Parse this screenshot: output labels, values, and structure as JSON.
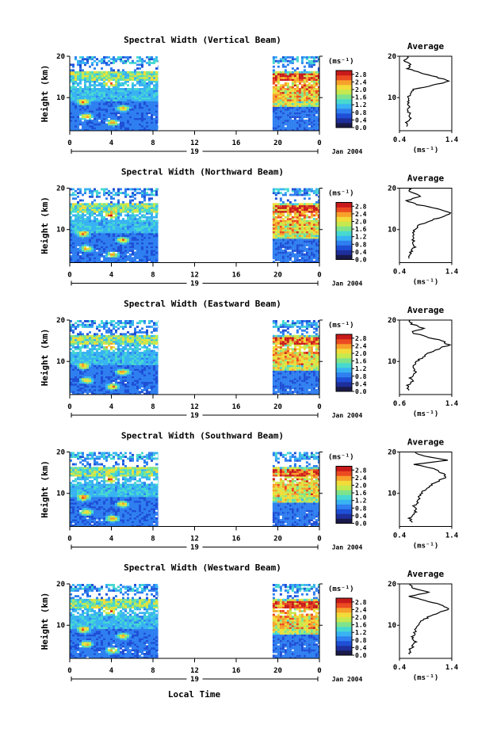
{
  "figure": {
    "xlabel": "Local Time",
    "date_label": "Jan 2004",
    "cbar_unit": "(ms⁻¹)",
    "avg_title": "Average",
    "avg_xlabel": "(ms⁻¹)",
    "ylabel": "Height (km)"
  },
  "chart_data": [
    {
      "type": "heatmap",
      "title": "Spectral Width (Vertical Beam)",
      "ylabel": "Height (km)",
      "xlabel": "Local Time",
      "x_ticks": [
        "0",
        "4",
        "8",
        "12",
        "16",
        "20",
        "0"
      ],
      "day_label": "19",
      "y_ticks": [
        "10",
        "20"
      ],
      "ylim": [
        2,
        20
      ],
      "xlim": [
        0,
        24
      ],
      "data_coverage": [
        [
          0,
          8.5
        ],
        [
          19.5,
          24
        ]
      ],
      "colorbar": {
        "ticks": [
          "0.0",
          "0.4",
          "0.8",
          "1.2",
          "1.6",
          "2.0",
          "2.4",
          "2.8"
        ],
        "range": [
          0,
          3.0
        ]
      },
      "average_profile": {
        "xlim": [
          0.4,
          1.4
        ],
        "x_ticks": [
          "0.4",
          "1.4"
        ],
        "y_ticks": [
          "10",
          "20"
        ],
        "height": [
          3,
          4,
          5,
          6,
          7,
          8,
          9,
          10,
          11,
          12,
          13,
          14,
          15,
          16,
          17,
          18,
          19,
          20
        ],
        "width": [
          0.55,
          0.52,
          0.6,
          0.62,
          0.55,
          0.58,
          0.56,
          0.57,
          0.6,
          0.68,
          1.05,
          1.35,
          1.1,
          0.8,
          0.55,
          0.6,
          0.5,
          0.55
        ]
      }
    },
    {
      "type": "heatmap",
      "title": "Spectral Width (Northward Beam)",
      "ylabel": "Height (km)",
      "xlabel": "Local Time",
      "x_ticks": [
        "0",
        "4",
        "8",
        "12",
        "16",
        "20",
        "0"
      ],
      "day_label": "19",
      "y_ticks": [
        "10",
        "20"
      ],
      "ylim": [
        2,
        20
      ],
      "xlim": [
        0,
        24
      ],
      "data_coverage": [
        [
          0,
          8.5
        ],
        [
          19.5,
          24
        ]
      ],
      "colorbar": {
        "ticks": [
          "0.0",
          "0.4",
          "0.8",
          "1.2",
          "1.6",
          "2.0",
          "2.4",
          "2.8"
        ],
        "range": [
          0,
          3.0
        ]
      },
      "average_profile": {
        "xlim": [
          0.4,
          1.4
        ],
        "x_ticks": [
          "0.4",
          "1.4"
        ],
        "y_ticks": [
          "10",
          "20"
        ],
        "height": [
          3,
          4,
          5,
          6,
          7,
          8,
          9,
          10,
          11,
          12,
          13,
          14,
          15,
          16,
          17,
          18,
          19,
          20
        ],
        "width": [
          0.6,
          0.58,
          0.65,
          0.7,
          0.66,
          0.68,
          0.65,
          0.7,
          0.78,
          0.95,
          1.2,
          1.38,
          1.15,
          0.75,
          0.55,
          0.8,
          0.62,
          0.58
        ]
      }
    },
    {
      "type": "heatmap",
      "title": "Spectral Width (Eastward Beam)",
      "ylabel": "Height (km)",
      "xlabel": "Local Time",
      "x_ticks": [
        "0",
        "4",
        "8",
        "12",
        "16",
        "20",
        "0"
      ],
      "day_label": "19",
      "y_ticks": [
        "10",
        "20"
      ],
      "ylim": [
        2,
        20
      ],
      "xlim": [
        0,
        24
      ],
      "data_coverage": [
        [
          0,
          8.5
        ],
        [
          19.5,
          24
        ]
      ],
      "colorbar": {
        "ticks": [
          "0.0",
          "0.4",
          "0.8",
          "1.2",
          "1.6",
          "2.0",
          "2.4",
          "2.8"
        ],
        "range": [
          0,
          3.0
        ]
      },
      "average_profile": {
        "xlim": [
          0.6,
          1.4
        ],
        "x_ticks": [
          "0.6",
          "1.4"
        ],
        "y_ticks": [
          "10",
          "20"
        ],
        "height": [
          3,
          4,
          5,
          6,
          7,
          8,
          9,
          10,
          11,
          12,
          13,
          14,
          15,
          16,
          17,
          18,
          19,
          20
        ],
        "width": [
          0.75,
          0.72,
          0.8,
          0.78,
          0.82,
          0.85,
          0.82,
          0.88,
          0.95,
          1.05,
          1.2,
          1.35,
          1.25,
          1.0,
          0.78,
          0.95,
          0.8,
          0.76
        ]
      }
    },
    {
      "type": "heatmap",
      "title": "Spectral Width (Southward Beam)",
      "ylabel": "Height (km)",
      "xlabel": "Local Time",
      "x_ticks": [
        "0",
        "4",
        "8",
        "12",
        "16",
        "20",
        "0"
      ],
      "day_label": "19",
      "y_ticks": [
        "10",
        "20"
      ],
      "ylim": [
        2,
        20
      ],
      "xlim": [
        0,
        24
      ],
      "data_coverage": [
        [
          0,
          8.5
        ],
        [
          19.5,
          24
        ]
      ],
      "colorbar": {
        "ticks": [
          "0.0",
          "0.4",
          "0.8",
          "1.2",
          "1.6",
          "2.0",
          "2.4",
          "2.8"
        ],
        "range": [
          0,
          3.0
        ]
      },
      "average_profile": {
        "xlim": [
          0.4,
          1.4
        ],
        "x_ticks": [
          "0.4",
          "1.4"
        ],
        "y_ticks": [
          "10",
          "20"
        ],
        "height": [
          3,
          4,
          5,
          6,
          7,
          8,
          9,
          10,
          11,
          12,
          13,
          14,
          15,
          16,
          17,
          18,
          19,
          20
        ],
        "width": [
          0.65,
          0.6,
          0.7,
          0.72,
          0.68,
          0.75,
          0.78,
          0.82,
          0.9,
          1.0,
          1.15,
          1.3,
          1.2,
          1.05,
          0.7,
          1.3,
          0.85,
          0.7
        ]
      }
    },
    {
      "type": "heatmap",
      "title": "Spectral Width (Westward Beam)",
      "ylabel": "Height (km)",
      "xlabel": "Local Time",
      "x_ticks": [
        "0",
        "4",
        "8",
        "12",
        "16",
        "20",
        "0"
      ],
      "day_label": "19",
      "y_ticks": [
        "10",
        "20"
      ],
      "ylim": [
        2,
        20
      ],
      "xlim": [
        0,
        24
      ],
      "data_coverage": [
        [
          0,
          8.5
        ],
        [
          19.5,
          24
        ]
      ],
      "colorbar": {
        "ticks": [
          "0.0",
          "0.4",
          "0.8",
          "1.2",
          "1.6",
          "2.0",
          "2.4",
          "2.8"
        ],
        "range": [
          0,
          3.0
        ]
      },
      "average_profile": {
        "xlim": [
          0.4,
          1.4
        ],
        "x_ticks": [
          "0.4",
          "1.4"
        ],
        "y_ticks": [
          "10",
          "20"
        ],
        "height": [
          3,
          4,
          5,
          6,
          7,
          8,
          9,
          10,
          11,
          12,
          13,
          14,
          15,
          16,
          17,
          18,
          19,
          20
        ],
        "width": [
          0.62,
          0.58,
          0.66,
          0.7,
          0.64,
          0.7,
          0.68,
          0.74,
          0.82,
          0.95,
          1.15,
          1.35,
          1.18,
          0.9,
          0.6,
          0.95,
          0.66,
          0.6
        ]
      }
    }
  ],
  "colormap": [
    "#1a1a4a",
    "#1e2f9c",
    "#1f4fd6",
    "#2f7ff0",
    "#39b3f2",
    "#47d9d0",
    "#7fe38c",
    "#c6e94f",
    "#f2dc3a",
    "#f7a12b",
    "#ec4b22",
    "#c81a1a"
  ]
}
